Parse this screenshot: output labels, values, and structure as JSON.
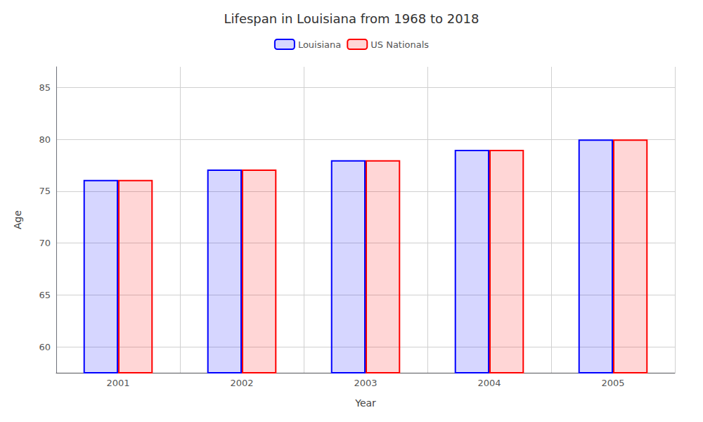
{
  "chart_data": {
    "type": "bar",
    "title": "Lifespan in Louisiana from 1968 to 2018",
    "xlabel": "Year",
    "ylabel": "Age",
    "categories": [
      "2001",
      "2002",
      "2003",
      "2004",
      "2005"
    ],
    "series": [
      {
        "name": "Louisiana",
        "color": "#0000ff",
        "values": [
          76.1,
          77.1,
          78.0,
          79.0,
          80.0
        ]
      },
      {
        "name": "US Nationals",
        "color": "#ff0000",
        "values": [
          76.1,
          77.1,
          78.0,
          79.0,
          80.0
        ]
      }
    ],
    "ylim": [
      57.5,
      87
    ],
    "yticks": [
      60,
      65,
      70,
      75,
      80,
      85
    ],
    "grid": true,
    "legend": "top"
  }
}
